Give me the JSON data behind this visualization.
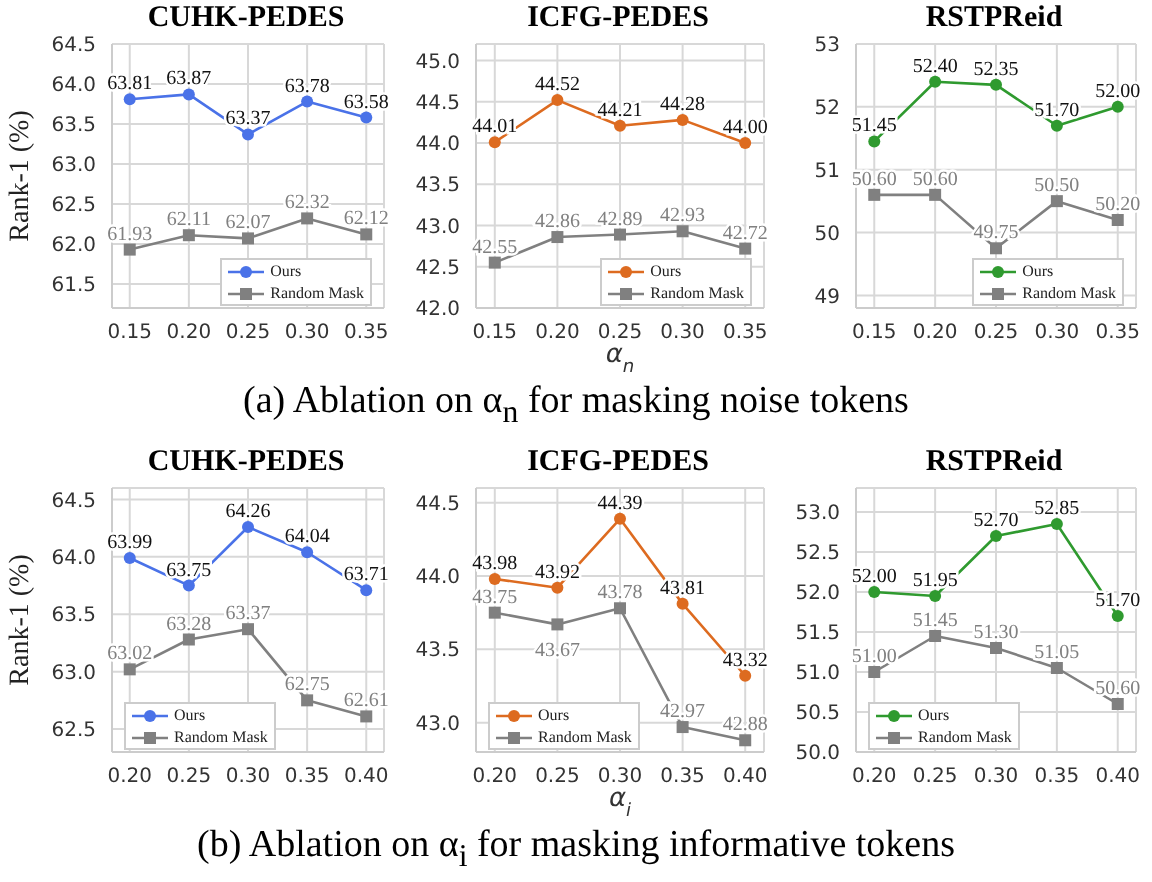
{
  "chart_data": [
    {
      "type": "line",
      "title": "CUHK-PEDES",
      "ylabel": "Rank-1 (%)",
      "categories": [
        "0.15",
        "0.20",
        "0.25",
        "0.30",
        "0.35"
      ],
      "series": [
        {
          "name": "Ours",
          "color": "#4a72e8",
          "marker": "circle",
          "values": [
            63.81,
            63.87,
            63.37,
            63.78,
            63.58
          ],
          "value_labels": [
            "63.81",
            "63.87",
            "63.37",
            "63.78",
            "63.58"
          ]
        },
        {
          "name": "Random Mask",
          "color": "#808080",
          "marker": "square",
          "values": [
            61.93,
            62.11,
            62.07,
            62.32,
            62.12
          ],
          "value_labels": [
            "61.93",
            "62.11",
            "62.07",
            "62.32",
            "62.12"
          ]
        }
      ],
      "ylim": [
        61.2,
        64.5
      ],
      "yticks": [
        61.5,
        {
          "value": 62,
          "label": "62.0"
        },
        62.5,
        {
          "value": 63,
          "label": "63.0"
        },
        63.5,
        {
          "value": 64,
          "label": "64.0"
        },
        64.5
      ],
      "grid": true,
      "legend": "bottom right"
    },
    {
      "type": "line",
      "title": "ICFG-PEDES",
      "xlabel": "α$_{n}$",
      "annotations": [
        "(a) Ablation on α$_{n}$ for masking noise tokens"
      ],
      "categories": [
        "0.15",
        "0.20",
        "0.25",
        "0.30",
        "0.35"
      ],
      "series": [
        {
          "name": "Ours",
          "color": "#dd6b20",
          "marker": "circle",
          "values": [
            44.01,
            44.52,
            44.21,
            44.28,
            44.0
          ],
          "value_labels": [
            "44.01",
            "44.52",
            "44.21",
            "44.28",
            "44.00"
          ]
        },
        {
          "name": "Random Mask",
          "color": "#808080",
          "marker": "square",
          "values": [
            42.55,
            42.86,
            42.89,
            42.93,
            42.72
          ],
          "value_labels": [
            "42.55",
            "42.86",
            "42.89",
            "42.93",
            "42.72"
          ]
        }
      ],
      "ylim": [
        42.0,
        45.2
      ],
      "yticks": [
        {
          "value": 42,
          "label": "42.0"
        },
        42.5,
        {
          "value": 43,
          "label": "43.0"
        },
        43.5,
        {
          "value": 44,
          "label": "44.0"
        },
        44.5,
        {
          "value": 45,
          "label": "45.0"
        }
      ],
      "grid": true,
      "legend": "bottom right"
    },
    {
      "type": "line",
      "title": "RSTPReid",
      "categories": [
        "0.15",
        "0.20",
        "0.25",
        "0.30",
        "0.35"
      ],
      "series": [
        {
          "name": "Ours",
          "color": "#2f9a2f",
          "marker": "circle",
          "values": [
            51.45,
            52.4,
            52.35,
            51.7,
            52.0
          ],
          "value_labels": [
            "51.45",
            "52.40",
            "52.35",
            "51.70",
            "52.00"
          ]
        },
        {
          "name": "Random Mask",
          "color": "#808080",
          "marker": "square",
          "values": [
            50.6,
            50.6,
            49.75,
            50.5,
            50.2
          ],
          "value_labels": [
            "50.60",
            "50.60",
            "49.75",
            "50.50",
            "50.20"
          ]
        }
      ],
      "ylim": [
        48.8,
        53.0
      ],
      "yticks": [
        49,
        50,
        51,
        52,
        53
      ],
      "grid": true,
      "legend": "bottom right"
    },
    {
      "type": "line",
      "title": "CUHK-PEDES",
      "ylabel": "Rank-1 (%)",
      "categories": [
        "0.20",
        "0.25",
        "0.30",
        "0.35",
        "0.40"
      ],
      "series": [
        {
          "name": "Ours",
          "color": "#4a72e8",
          "marker": "circle",
          "values": [
            63.99,
            63.75,
            64.26,
            64.04,
            63.71
          ],
          "value_labels": [
            "63.99",
            "63.75",
            "64.26",
            "64.04",
            "63.71"
          ]
        },
        {
          "name": "Random Mask",
          "color": "#808080",
          "marker": "square",
          "values": [
            63.02,
            63.28,
            63.37,
            62.75,
            62.61
          ],
          "value_labels": [
            "63.02",
            "63.28",
            "63.37",
            "62.75",
            "62.61"
          ]
        }
      ],
      "ylim": [
        62.3,
        64.6
      ],
      "yticks": [
        62.5,
        {
          "value": 63,
          "label": "63.0"
        },
        63.5,
        {
          "value": 64,
          "label": "64.0"
        },
        64.5
      ],
      "grid": true,
      "legend": "bottom left"
    },
    {
      "type": "line",
      "title": "ICFG-PEDES",
      "xlabel": "α$_{i}$",
      "annotations": [
        "(b) Ablation on α$_{i}$ for masking informative tokens"
      ],
      "categories": [
        "0.20",
        "0.25",
        "0.30",
        "0.35",
        "0.40"
      ],
      "series": [
        {
          "name": "Ours",
          "color": "#dd6b20",
          "marker": "circle",
          "values": [
            43.98,
            43.92,
            44.39,
            43.81,
            43.32
          ],
          "value_labels": [
            "43.98",
            "43.92",
            "44.39",
            "43.81",
            "43.32"
          ]
        },
        {
          "name": "Random Mask",
          "color": "#808080",
          "marker": "square",
          "values": [
            43.75,
            43.67,
            43.78,
            42.97,
            42.88
          ],
          "value_labels": [
            "43.75",
            "43.67",
            "43.78",
            "42.97",
            "42.88"
          ]
        }
      ],
      "ylim": [
        42.8,
        44.6
      ],
      "yticks": [
        {
          "value": 43,
          "label": "43.0"
        },
        43.5,
        {
          "value": 44,
          "label": "44.0"
        },
        44.5
      ],
      "grid": true,
      "legend": "bottom left"
    },
    {
      "type": "line",
      "title": "RSTPReid",
      "categories": [
        "0.20",
        "0.25",
        "0.30",
        "0.35",
        "0.40"
      ],
      "series": [
        {
          "name": "Ours",
          "color": "#2f9a2f",
          "marker": "circle",
          "values": [
            52.0,
            51.95,
            52.7,
            52.85,
            51.7
          ],
          "value_labels": [
            "52.00",
            "51.95",
            "52.70",
            "52.85",
            "51.70"
          ]
        },
        {
          "name": "Random Mask",
          "color": "#808080",
          "marker": "square",
          "values": [
            51.0,
            51.45,
            51.3,
            51.05,
            50.6
          ],
          "value_labels": [
            "51.00",
            "51.45",
            "51.30",
            "51.05",
            "50.60"
          ]
        }
      ],
      "ylim": [
        50.0,
        53.3
      ],
      "yticks": [
        {
          "value": 50,
          "label": "50.0"
        },
        50.5,
        {
          "value": 51,
          "label": "51.0"
        },
        51.5,
        {
          "value": 52,
          "label": "52.0"
        },
        52.5,
        {
          "value": 53,
          "label": "53.0"
        }
      ],
      "grid": true,
      "legend": "bottom left"
    }
  ]
}
